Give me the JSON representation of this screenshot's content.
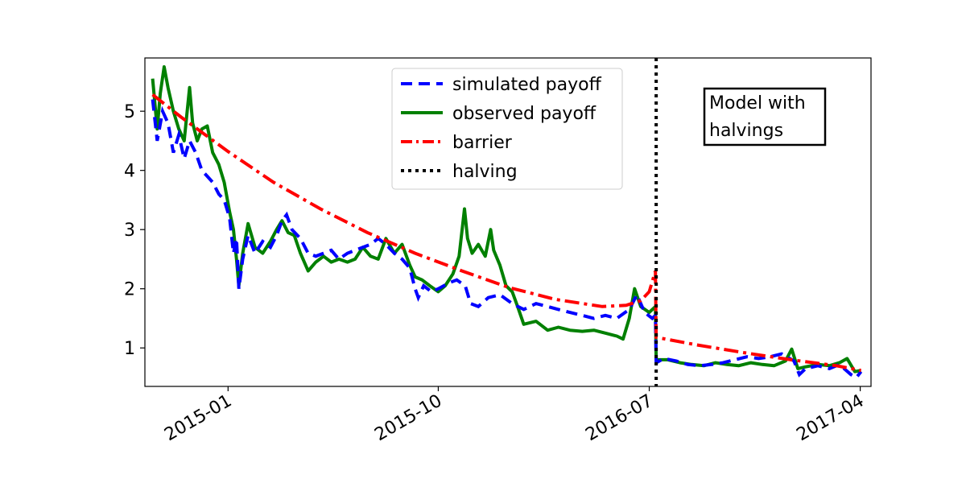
{
  "chart_data": {
    "type": "line",
    "title": "",
    "xlabel": "",
    "ylabel": "",
    "xlim": [
      "2014-09-15",
      "2017-04-15"
    ],
    "ylim": [
      0.35,
      5.9
    ],
    "grid": false,
    "legend_placement": "top-center",
    "x_ticks": [
      "2015-01",
      "2015-10",
      "2016-07",
      "2017-04"
    ],
    "y_ticks": [
      1,
      2,
      3,
      4,
      5
    ],
    "annotation": {
      "line1": "Model with",
      "line2": "halvings"
    },
    "halving_date": "2016-07-10",
    "colors": {
      "simulated": "#0000ff",
      "observed": "#008000",
      "barrier": "#ff0000",
      "halving": "#000000"
    },
    "series": [
      {
        "name": "simulated payoff",
        "style": "dashed",
        "points": [
          [
            "2014-09-25",
            5.2
          ],
          [
            "2014-10-01",
            4.5
          ],
          [
            "2014-10-08",
            5.0
          ],
          [
            "2014-10-15",
            4.8
          ],
          [
            "2014-10-22",
            4.3
          ],
          [
            "2014-10-29",
            4.6
          ],
          [
            "2014-11-05",
            4.2
          ],
          [
            "2014-11-12",
            4.5
          ],
          [
            "2014-11-20",
            4.3
          ],
          [
            "2014-11-28",
            4.0
          ],
          [
            "2014-12-05",
            3.9
          ],
          [
            "2014-12-12",
            3.8
          ],
          [
            "2014-12-20",
            3.6
          ],
          [
            "2014-12-27",
            3.5
          ],
          [
            "2015-01-03",
            3.2
          ],
          [
            "2015-01-08",
            2.6
          ],
          [
            "2015-01-12",
            2.85
          ],
          [
            "2015-01-15",
            2.0
          ],
          [
            "2015-01-20",
            2.5
          ],
          [
            "2015-01-27",
            2.9
          ],
          [
            "2015-02-05",
            2.6
          ],
          [
            "2015-02-15",
            2.8
          ],
          [
            "2015-02-25",
            2.7
          ],
          [
            "2015-03-05",
            2.9
          ],
          [
            "2015-03-12",
            3.15
          ],
          [
            "2015-03-18",
            3.25
          ],
          [
            "2015-03-25",
            3.0
          ],
          [
            "2015-04-05",
            2.85
          ],
          [
            "2015-04-15",
            2.6
          ],
          [
            "2015-04-25",
            2.55
          ],
          [
            "2015-05-05",
            2.6
          ],
          [
            "2015-05-15",
            2.65
          ],
          [
            "2015-05-25",
            2.5
          ],
          [
            "2015-06-05",
            2.6
          ],
          [
            "2015-06-15",
            2.65
          ],
          [
            "2015-06-25",
            2.7
          ],
          [
            "2015-07-05",
            2.75
          ],
          [
            "2015-07-15",
            2.85
          ],
          [
            "2015-07-25",
            2.75
          ],
          [
            "2015-08-05",
            2.6
          ],
          [
            "2015-08-15",
            2.5
          ],
          [
            "2015-08-25",
            2.35
          ],
          [
            "2015-09-01",
            2.0
          ],
          [
            "2015-09-05",
            1.85
          ],
          [
            "2015-09-12",
            2.05
          ],
          [
            "2015-09-22",
            1.95
          ],
          [
            "2015-10-01",
            2.0
          ],
          [
            "2015-10-15",
            2.1
          ],
          [
            "2015-10-25",
            2.15
          ],
          [
            "2015-11-05",
            2.05
          ],
          [
            "2015-11-12",
            1.75
          ],
          [
            "2015-11-22",
            1.7
          ],
          [
            "2015-12-05",
            1.85
          ],
          [
            "2015-12-20",
            1.9
          ],
          [
            "2016-01-05",
            1.75
          ],
          [
            "2016-01-20",
            1.65
          ],
          [
            "2016-02-05",
            1.75
          ],
          [
            "2016-02-20",
            1.7
          ],
          [
            "2016-03-05",
            1.65
          ],
          [
            "2016-03-20",
            1.6
          ],
          [
            "2016-04-05",
            1.55
          ],
          [
            "2016-04-20",
            1.5
          ],
          [
            "2016-05-05",
            1.55
          ],
          [
            "2016-05-20",
            1.5
          ],
          [
            "2016-06-05",
            1.65
          ],
          [
            "2016-06-15",
            1.9
          ],
          [
            "2016-06-25",
            1.6
          ],
          [
            "2016-07-05",
            1.5
          ],
          [
            "2016-07-09",
            1.55
          ],
          [
            "2016-07-10",
            0.75
          ],
          [
            "2016-07-20",
            0.82
          ],
          [
            "2016-08-05",
            0.78
          ],
          [
            "2016-08-20",
            0.72
          ],
          [
            "2016-09-05",
            0.7
          ],
          [
            "2016-09-20",
            0.72
          ],
          [
            "2016-10-05",
            0.75
          ],
          [
            "2016-10-20",
            0.8
          ],
          [
            "2016-11-05",
            0.85
          ],
          [
            "2016-11-20",
            0.82
          ],
          [
            "2016-12-05",
            0.85
          ],
          [
            "2016-12-20",
            0.9
          ],
          [
            "2017-01-05",
            0.78
          ],
          [
            "2017-01-12",
            0.55
          ],
          [
            "2017-01-20",
            0.65
          ],
          [
            "2017-02-05",
            0.7
          ],
          [
            "2017-02-20",
            0.65
          ],
          [
            "2017-03-05",
            0.72
          ],
          [
            "2017-03-20",
            0.55
          ],
          [
            "2017-03-27",
            0.5
          ],
          [
            "2017-04-02",
            0.6
          ]
        ]
      },
      {
        "name": "observed payoff",
        "style": "solid",
        "points": [
          [
            "2014-09-25",
            5.55
          ],
          [
            "2014-10-01",
            4.7
          ],
          [
            "2014-10-05",
            5.3
          ],
          [
            "2014-10-10",
            5.75
          ],
          [
            "2014-10-15",
            5.4
          ],
          [
            "2014-10-22",
            5.0
          ],
          [
            "2014-10-29",
            4.7
          ],
          [
            "2014-11-05",
            4.5
          ],
          [
            "2014-11-12",
            5.4
          ],
          [
            "2014-11-16",
            4.8
          ],
          [
            "2014-11-22",
            4.5
          ],
          [
            "2014-11-28",
            4.7
          ],
          [
            "2014-12-05",
            4.75
          ],
          [
            "2014-12-12",
            4.3
          ],
          [
            "2014-12-20",
            4.1
          ],
          [
            "2014-12-27",
            3.8
          ],
          [
            "2015-01-03",
            3.3
          ],
          [
            "2015-01-08",
            3.0
          ],
          [
            "2015-01-12",
            2.5
          ],
          [
            "2015-01-15",
            2.05
          ],
          [
            "2015-01-20",
            2.6
          ],
          [
            "2015-01-27",
            3.1
          ],
          [
            "2015-02-05",
            2.7
          ],
          [
            "2015-02-15",
            2.6
          ],
          [
            "2015-02-25",
            2.8
          ],
          [
            "2015-03-05",
            3.0
          ],
          [
            "2015-03-12",
            3.15
          ],
          [
            "2015-03-20",
            2.95
          ],
          [
            "2015-03-28",
            2.9
          ],
          [
            "2015-04-05",
            2.6
          ],
          [
            "2015-04-15",
            2.3
          ],
          [
            "2015-04-25",
            2.45
          ],
          [
            "2015-05-05",
            2.55
          ],
          [
            "2015-05-15",
            2.45
          ],
          [
            "2015-05-25",
            2.5
          ],
          [
            "2015-06-05",
            2.45
          ],
          [
            "2015-06-15",
            2.5
          ],
          [
            "2015-06-25",
            2.7
          ],
          [
            "2015-07-05",
            2.55
          ],
          [
            "2015-07-15",
            2.5
          ],
          [
            "2015-07-25",
            2.85
          ],
          [
            "2015-08-05",
            2.6
          ],
          [
            "2015-08-15",
            2.75
          ],
          [
            "2015-08-25",
            2.4
          ],
          [
            "2015-09-01",
            2.2
          ],
          [
            "2015-09-10",
            2.15
          ],
          [
            "2015-09-20",
            2.05
          ],
          [
            "2015-10-01",
            1.95
          ],
          [
            "2015-10-10",
            2.05
          ],
          [
            "2015-10-20",
            2.25
          ],
          [
            "2015-10-28",
            2.55
          ],
          [
            "2015-11-04",
            3.35
          ],
          [
            "2015-11-08",
            2.85
          ],
          [
            "2015-11-14",
            2.6
          ],
          [
            "2015-11-22",
            2.75
          ],
          [
            "2015-12-01",
            2.55
          ],
          [
            "2015-12-08",
            3.0
          ],
          [
            "2015-12-12",
            2.65
          ],
          [
            "2015-12-20",
            2.4
          ],
          [
            "2015-12-28",
            2.05
          ],
          [
            "2016-01-05",
            1.95
          ],
          [
            "2016-01-12",
            1.7
          ],
          [
            "2016-01-20",
            1.4
          ],
          [
            "2016-02-05",
            1.45
          ],
          [
            "2016-02-20",
            1.3
          ],
          [
            "2016-03-05",
            1.35
          ],
          [
            "2016-03-20",
            1.3
          ],
          [
            "2016-04-05",
            1.28
          ],
          [
            "2016-04-20",
            1.3
          ],
          [
            "2016-05-05",
            1.25
          ],
          [
            "2016-05-20",
            1.2
          ],
          [
            "2016-05-28",
            1.15
          ],
          [
            "2016-06-05",
            1.5
          ],
          [
            "2016-06-12",
            2.0
          ],
          [
            "2016-06-20",
            1.7
          ],
          [
            "2016-07-01",
            1.6
          ],
          [
            "2016-07-09",
            1.7
          ],
          [
            "2016-07-10",
            0.8
          ],
          [
            "2016-07-25",
            0.8
          ],
          [
            "2016-08-10",
            0.75
          ],
          [
            "2016-08-25",
            0.72
          ],
          [
            "2016-09-10",
            0.7
          ],
          [
            "2016-09-25",
            0.75
          ],
          [
            "2016-10-10",
            0.72
          ],
          [
            "2016-10-25",
            0.7
          ],
          [
            "2016-11-10",
            0.75
          ],
          [
            "2016-11-25",
            0.72
          ],
          [
            "2016-12-10",
            0.7
          ],
          [
            "2016-12-25",
            0.78
          ],
          [
            "2017-01-02",
            0.98
          ],
          [
            "2017-01-10",
            0.65
          ],
          [
            "2017-01-20",
            0.68
          ],
          [
            "2017-02-05",
            0.72
          ],
          [
            "2017-02-20",
            0.7
          ],
          [
            "2017-03-05",
            0.75
          ],
          [
            "2017-03-15",
            0.82
          ],
          [
            "2017-03-25",
            0.6
          ],
          [
            "2017-04-02",
            0.62
          ]
        ]
      },
      {
        "name": "barrier",
        "style": "dashdot",
        "points": [
          [
            "2014-09-25",
            5.28
          ],
          [
            "2014-11-01",
            4.9
          ],
          [
            "2015-01-01",
            4.32
          ],
          [
            "2015-03-01",
            3.8
          ],
          [
            "2015-05-01",
            3.35
          ],
          [
            "2015-07-01",
            2.95
          ],
          [
            "2015-09-01",
            2.6
          ],
          [
            "2015-11-01",
            2.3
          ],
          [
            "2016-01-01",
            2.02
          ],
          [
            "2016-03-01",
            1.82
          ],
          [
            "2016-05-01",
            1.7
          ],
          [
            "2016-06-01",
            1.72
          ],
          [
            "2016-06-20",
            1.8
          ],
          [
            "2016-07-01",
            1.95
          ],
          [
            "2016-07-09",
            2.3
          ],
          [
            "2016-07-10",
            1.18
          ],
          [
            "2016-09-01",
            1.05
          ],
          [
            "2016-11-01",
            0.92
          ],
          [
            "2017-01-01",
            0.8
          ],
          [
            "2017-03-01",
            0.7
          ],
          [
            "2017-04-02",
            0.62
          ]
        ]
      },
      {
        "name": "halving",
        "style": "dotted"
      }
    ]
  }
}
